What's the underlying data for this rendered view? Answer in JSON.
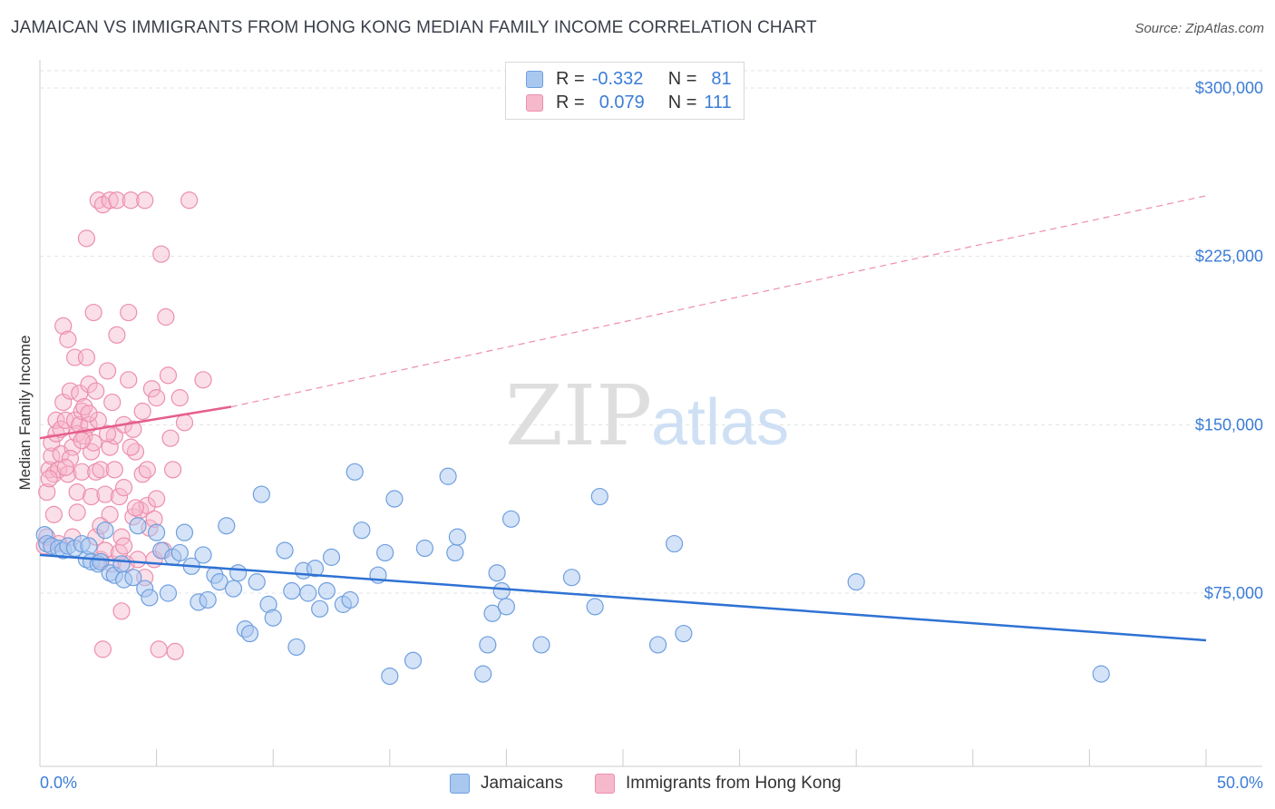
{
  "title": "JAMAICAN VS IMMIGRANTS FROM HONG KONG MEDIAN FAMILY INCOME CORRELATION CHART",
  "source": "Source: ZipAtlas.com",
  "watermark": {
    "zip": "ZIP",
    "atlas": "atlas"
  },
  "legend": {
    "r_label": "R =",
    "n_label": "N =",
    "series": [
      {
        "name": "Jamaicans",
        "r": "-0.332",
        "n": "81"
      },
      {
        "name": "Immigrants from Hong Kong",
        "r": "0.079",
        "n": "111"
      }
    ]
  },
  "colors": {
    "blue_fill": "#a9c8f0",
    "blue_stroke": "#6f9fdf",
    "blue_line": "#2f72d3",
    "pink_fill": "#f6b9cb",
    "pink_stroke": "#ec8fad",
    "pink_line": "#e55e8c",
    "axis_label": "#3b7dd8"
  },
  "chart_data": {
    "type": "scatter",
    "title": "JAMAICAN VS IMMIGRANTS FROM HONG KONG MEDIAN FAMILY INCOME CORRELATION CHART",
    "xlabel": "",
    "ylabel": "Median Family Income",
    "xlim": [
      0,
      50
    ],
    "ylim": [
      0,
      310000
    ],
    "x_tick_labels": [
      "0.0%",
      "50.0%"
    ],
    "y_ticks": [
      75000,
      150000,
      225000,
      300000
    ],
    "y_tick_labels": [
      "$75,000",
      "$150,000",
      "$225,000",
      "$300,000"
    ],
    "grid": true,
    "legend_position": "top-center",
    "series": [
      {
        "name": "Jamaicans",
        "trend": {
          "x0": 0,
          "y0": 92000,
          "x1": 50,
          "y1": 54000
        },
        "points": [
          [
            0.2,
            101000
          ],
          [
            0.3,
            97000
          ],
          [
            0.5,
            96000
          ],
          [
            0.8,
            95000
          ],
          [
            1.0,
            94000
          ],
          [
            1.2,
            96000
          ],
          [
            1.5,
            95000
          ],
          [
            1.8,
            97000
          ],
          [
            2.0,
            90000
          ],
          [
            2.1,
            96000
          ],
          [
            2.2,
            89000
          ],
          [
            2.5,
            88000
          ],
          [
            2.6,
            89000
          ],
          [
            3.0,
            84000
          ],
          [
            3.2,
            83000
          ],
          [
            3.5,
            88000
          ],
          [
            3.6,
            81000
          ],
          [
            4.0,
            82000
          ],
          [
            4.2,
            105000
          ],
          [
            4.5,
            77000
          ],
          [
            4.7,
            73000
          ],
          [
            5.0,
            102000
          ],
          [
            5.2,
            94000
          ],
          [
            5.5,
            75000
          ],
          [
            5.7,
            91000
          ],
          [
            6.0,
            93000
          ],
          [
            6.2,
            102000
          ],
          [
            6.5,
            87000
          ],
          [
            6.8,
            71000
          ],
          [
            7.0,
            92000
          ],
          [
            7.2,
            72000
          ],
          [
            7.5,
            83000
          ],
          [
            7.7,
            80000
          ],
          [
            8.0,
            105000
          ],
          [
            8.3,
            77000
          ],
          [
            8.5,
            84000
          ],
          [
            8.8,
            59000
          ],
          [
            9.0,
            57000
          ],
          [
            9.3,
            80000
          ],
          [
            9.5,
            119000
          ],
          [
            9.8,
            70000
          ],
          [
            10.0,
            64000
          ],
          [
            10.5,
            94000
          ],
          [
            10.8,
            76000
          ],
          [
            11.0,
            51000
          ],
          [
            11.3,
            85000
          ],
          [
            11.5,
            75000
          ],
          [
            11.8,
            86000
          ],
          [
            12.0,
            68000
          ],
          [
            12.3,
            76000
          ],
          [
            12.5,
            91000
          ],
          [
            13.0,
            70000
          ],
          [
            13.3,
            72000
          ],
          [
            13.5,
            129000
          ],
          [
            13.8,
            103000
          ],
          [
            14.5,
            83000
          ],
          [
            14.8,
            93000
          ],
          [
            15.0,
            38000
          ],
          [
            15.2,
            117000
          ],
          [
            16.0,
            45000
          ],
          [
            16.5,
            95000
          ],
          [
            17.5,
            127000
          ],
          [
            17.8,
            93000
          ],
          [
            17.9,
            100000
          ],
          [
            19.0,
            39000
          ],
          [
            19.2,
            52000
          ],
          [
            19.4,
            66000
          ],
          [
            19.6,
            84000
          ],
          [
            19.8,
            76000
          ],
          [
            20.0,
            69000
          ],
          [
            20.2,
            108000
          ],
          [
            21.5,
            52000
          ],
          [
            22.8,
            82000
          ],
          [
            23.8,
            69000
          ],
          [
            24.0,
            118000
          ],
          [
            26.5,
            52000
          ],
          [
            27.2,
            97000
          ],
          [
            27.6,
            57000
          ],
          [
            35.0,
            80000
          ],
          [
            45.5,
            39000
          ],
          [
            2.8,
            103000
          ]
        ]
      },
      {
        "name": "Immigrants from Hong Kong",
        "trend": {
          "x0": 0,
          "y0": 144000,
          "x1": 8.2,
          "y1": 158000,
          "dashed_to": {
            "x": 50,
            "y": 252000
          }
        },
        "points": [
          [
            0.2,
            96000
          ],
          [
            0.3,
            100000
          ],
          [
            0.3,
            120000
          ],
          [
            0.4,
            130000
          ],
          [
            0.5,
            136000
          ],
          [
            0.5,
            142000
          ],
          [
            0.6,
            128000
          ],
          [
            0.6,
            110000
          ],
          [
            0.7,
            146000
          ],
          [
            0.7,
            152000
          ],
          [
            0.8,
            130000
          ],
          [
            0.9,
            148000
          ],
          [
            0.9,
            137000
          ],
          [
            1.0,
            160000
          ],
          [
            1.0,
            194000
          ],
          [
            1.1,
            152000
          ],
          [
            1.2,
            188000
          ],
          [
            1.2,
            128000
          ],
          [
            1.3,
            165000
          ],
          [
            1.4,
            140000
          ],
          [
            1.4,
            100000
          ],
          [
            1.5,
            180000
          ],
          [
            1.5,
            152000
          ],
          [
            1.6,
            146000
          ],
          [
            1.6,
            120000
          ],
          [
            1.7,
            150000
          ],
          [
            1.7,
            164000
          ],
          [
            1.8,
            156000
          ],
          [
            1.8,
            129000
          ],
          [
            1.9,
            145000
          ],
          [
            2.0,
            180000
          ],
          [
            2.0,
            233000
          ],
          [
            2.1,
            168000
          ],
          [
            2.1,
            150000
          ],
          [
            2.2,
            138000
          ],
          [
            2.2,
            118000
          ],
          [
            2.3,
            200000
          ],
          [
            2.3,
            142000
          ],
          [
            2.4,
            129000
          ],
          [
            2.4,
            100000
          ],
          [
            2.5,
            152000
          ],
          [
            2.5,
            250000
          ],
          [
            2.6,
            90000
          ],
          [
            2.6,
            130000
          ],
          [
            2.7,
            50000
          ],
          [
            2.7,
            248000
          ],
          [
            2.8,
            119000
          ],
          [
            2.8,
            94000
          ],
          [
            2.9,
            174000
          ],
          [
            3.0,
            250000
          ],
          [
            3.0,
            140000
          ],
          [
            3.0,
            110000
          ],
          [
            3.1,
            88000
          ],
          [
            3.2,
            130000
          ],
          [
            3.2,
            145000
          ],
          [
            3.3,
            250000
          ],
          [
            3.3,
            190000
          ],
          [
            3.4,
            118000
          ],
          [
            3.5,
            67000
          ],
          [
            3.5,
            100000
          ],
          [
            3.6,
            150000
          ],
          [
            3.6,
            122000
          ],
          [
            3.7,
            88000
          ],
          [
            3.8,
            200000
          ],
          [
            3.8,
            170000
          ],
          [
            3.9,
            250000
          ],
          [
            4.0,
            109000
          ],
          [
            4.0,
            148000
          ],
          [
            4.1,
            138000
          ],
          [
            4.2,
            90000
          ],
          [
            4.3,
            112000
          ],
          [
            4.4,
            156000
          ],
          [
            4.5,
            82000
          ],
          [
            4.5,
            250000
          ],
          [
            4.6,
            114000
          ],
          [
            4.7,
            104000
          ],
          [
            4.8,
            166000
          ],
          [
            4.9,
            90000
          ],
          [
            5.0,
            162000
          ],
          [
            5.0,
            117000
          ],
          [
            5.1,
            50000
          ],
          [
            5.2,
            226000
          ],
          [
            5.3,
            94000
          ],
          [
            5.4,
            198000
          ],
          [
            5.5,
            172000
          ],
          [
            5.6,
            144000
          ],
          [
            5.7,
            130000
          ],
          [
            5.8,
            49000
          ],
          [
            6.0,
            162000
          ],
          [
            6.2,
            151000
          ],
          [
            6.4,
            250000
          ],
          [
            7.0,
            170000
          ],
          [
            0.4,
            126000
          ],
          [
            0.8,
            97000
          ],
          [
            1.3,
            135000
          ],
          [
            1.9,
            158000
          ],
          [
            2.4,
            165000
          ],
          [
            2.9,
            146000
          ],
          [
            3.4,
            93000
          ],
          [
            3.9,
            140000
          ],
          [
            4.4,
            128000
          ],
          [
            4.9,
            108000
          ],
          [
            1.1,
            131000
          ],
          [
            1.6,
            111000
          ],
          [
            2.1,
            155000
          ],
          [
            2.6,
            105000
          ],
          [
            3.1,
            160000
          ],
          [
            3.6,
            96000
          ],
          [
            4.1,
            113000
          ],
          [
            4.6,
            130000
          ],
          [
            1.8,
            143000
          ]
        ]
      }
    ]
  }
}
